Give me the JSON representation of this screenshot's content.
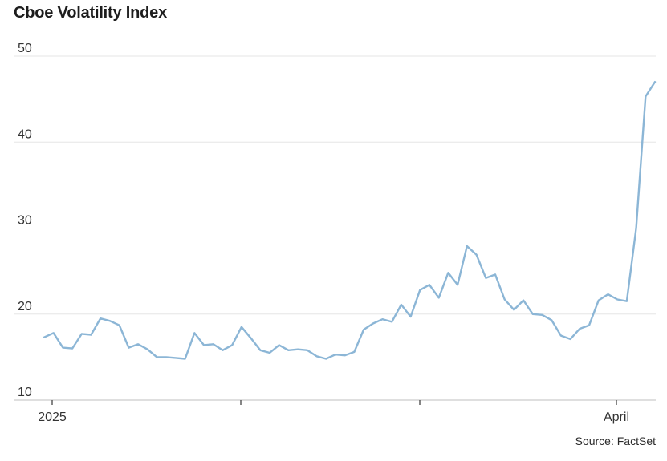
{
  "chart_data": {
    "type": "line",
    "title": "Cboe Volatility Index",
    "xlabel": "",
    "ylabel": "",
    "ylim": [
      10,
      50
    ],
    "y_ticks": [
      10,
      20,
      30,
      40,
      50
    ],
    "x_tick_labels": [
      "2025",
      "",
      "",
      "April"
    ],
    "grid": true,
    "legend": "none",
    "line_color": "#8cb6d6",
    "series": [
      {
        "values": [
          17.3,
          17.8,
          16.1,
          16.0,
          17.7,
          17.6,
          19.5,
          19.2,
          18.7,
          16.1,
          16.5,
          15.9,
          15.0,
          15.0,
          14.9,
          14.8,
          17.8,
          16.4,
          16.5,
          15.8,
          16.4,
          18.5,
          17.2,
          15.8,
          15.5,
          16.4,
          15.8,
          15.9,
          15.8,
          15.1,
          14.8,
          15.3,
          15.2,
          15.6,
          18.2,
          18.9,
          19.4,
          19.1,
          21.1,
          19.7,
          22.8,
          23.4,
          21.9,
          24.8,
          23.4,
          27.9,
          26.9,
          24.2,
          24.6,
          21.7,
          20.5,
          21.6,
          20.0,
          19.9,
          19.3,
          17.5,
          17.1,
          18.3,
          18.7,
          21.6,
          22.3,
          21.7,
          21.5,
          30.0,
          45.3,
          47.0
        ]
      }
    ],
    "source": "Source: FactSet"
  }
}
